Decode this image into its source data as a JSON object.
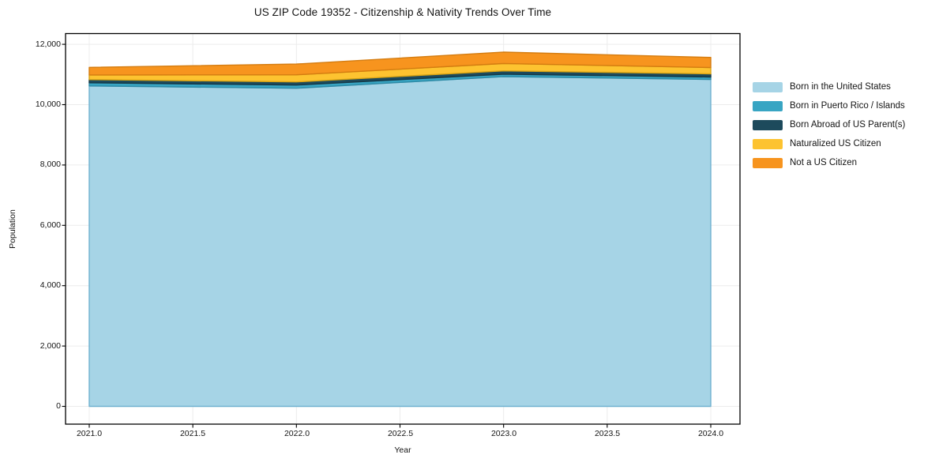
{
  "title": "US ZIP Code 19352 - Citizenship & Nativity Trends Over Time",
  "chart_data": {
    "type": "area",
    "stacked": true,
    "title": "US ZIP Code 19352 - Citizenship & Nativity Trends Over Time",
    "xlabel": "Year",
    "ylabel": "Population",
    "x": [
      2021,
      2022,
      2023,
      2024
    ],
    "series": [
      {
        "name": "Born in the United States",
        "color": "#a6d4e6",
        "edge": "#6fb1cf",
        "values": [
          10620,
          10545,
          10930,
          10835
        ]
      },
      {
        "name": "Born in Puerto Rico / Islands",
        "color": "#38a5c3",
        "edge": "#2d8aa5",
        "values": [
          105,
          105,
          80,
          80
        ]
      },
      {
        "name": "Born Abroad of US Parent(s)",
        "color": "#1d4a5c",
        "edge": "#153846",
        "values": [
          105,
          105,
          110,
          105
        ]
      },
      {
        "name": "Naturalized US Citizen",
        "color": "#fdc330",
        "edge": "#d9a414",
        "values": [
          155,
          235,
          245,
          210
        ]
      },
      {
        "name": "Not a US Citizen",
        "color": "#f7941e",
        "edge": "#d47c10",
        "values": [
          250,
          355,
          375,
          335
        ]
      }
    ],
    "totals": [
      11235,
      11345,
      11740,
      11565
    ],
    "xtick_values": [
      2021.0,
      2021.5,
      2022.0,
      2022.5,
      2023.0,
      2023.5,
      2024.0
    ],
    "xticklabels": [
      "2021.0",
      "2021.5",
      "2022.0",
      "2022.5",
      "2023.0",
      "2023.5",
      "2024.0"
    ],
    "ytick_values": [
      0,
      2000,
      4000,
      6000,
      8000,
      10000,
      12000
    ],
    "yticklabels": [
      "0",
      "2,000",
      "4,000",
      "6,000",
      "8,000",
      "10,000",
      "12,000"
    ],
    "xlim": [
      2020.89,
      2024.14
    ],
    "ylim": [
      -600,
      12350
    ],
    "grid": true,
    "grid_color": "#ececec",
    "legend_position": "right-outside",
    "background": "#ffffff",
    "spine_color": "#000000"
  }
}
